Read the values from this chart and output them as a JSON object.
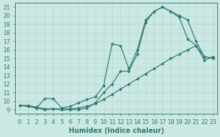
{
  "xlabel": "Humidex (Indice chaleur)",
  "bg_color": "#cce8e4",
  "line_color": "#2d7a6e",
  "grid_color": "#b0d8d4",
  "ylim": [
    8.5,
    21.5
  ],
  "xlim": [
    -0.5,
    23.5
  ],
  "yticks": [
    9,
    10,
    11,
    12,
    13,
    14,
    15,
    16,
    17,
    18,
    19,
    20,
    21
  ],
  "xticks": [
    0,
    1,
    2,
    3,
    4,
    5,
    6,
    7,
    8,
    9,
    10,
    11,
    12,
    13,
    14,
    15,
    16,
    17,
    18,
    19,
    20,
    21,
    22,
    23
  ],
  "line1_x": [
    0,
    1,
    2,
    3,
    4,
    5,
    6,
    7,
    8,
    9,
    10,
    11,
    12,
    13,
    14,
    15,
    16,
    17,
    18,
    19,
    20,
    21,
    22,
    23
  ],
  "line1_y": [
    9.5,
    9.5,
    9.3,
    9.1,
    9.1,
    9.1,
    9.1,
    9.2,
    9.4,
    9.7,
    10.2,
    10.8,
    11.4,
    12.0,
    12.6,
    13.2,
    13.8,
    14.4,
    15.0,
    15.5,
    16.0,
    16.5,
    14.8,
    15.2
  ],
  "line2_x": [
    0,
    1,
    2,
    3,
    4,
    5,
    6,
    7,
    8,
    9,
    10,
    11,
    12,
    13,
    14,
    15,
    16,
    17,
    18,
    19,
    20,
    21,
    22,
    23
  ],
  "line2_y": [
    9.5,
    9.4,
    9.2,
    9.0,
    9.1,
    9.0,
    9.0,
    9.0,
    9.2,
    9.8,
    11.0,
    12.0,
    13.5,
    13.5,
    15.5,
    19.2,
    20.5,
    21.0,
    20.5,
    19.8,
    17.3,
    16.5,
    15.2,
    15.0
  ],
  "line3_x": [
    0,
    1,
    2,
    3,
    4,
    5,
    6,
    7,
    8,
    9,
    10,
    11,
    12,
    13,
    14,
    15,
    16,
    17,
    18,
    19,
    20,
    21,
    22,
    23
  ],
  "line3_y": [
    9.5,
    9.4,
    9.2,
    10.3,
    10.3,
    9.2,
    9.4,
    9.8,
    10.2,
    10.5,
    11.8,
    16.7,
    16.5,
    13.8,
    16.0,
    19.5,
    20.5,
    21.0,
    20.5,
    20.0,
    19.5,
    17.0,
    15.2,
    15.0
  ],
  "marker_size": 2.5,
  "font_size": 7,
  "linewidth": 0.9
}
